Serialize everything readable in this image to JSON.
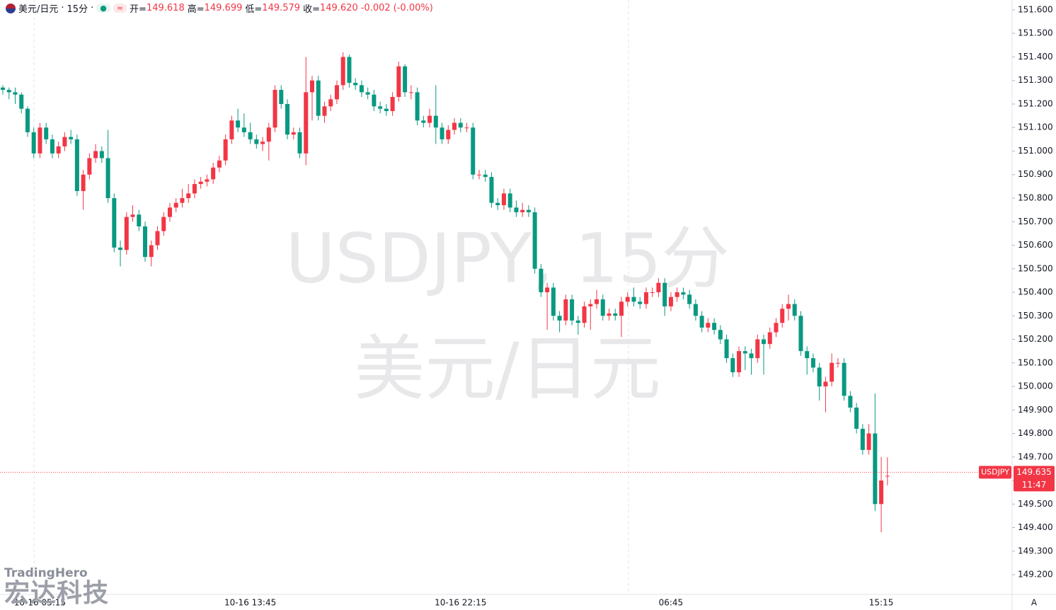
{
  "header": {
    "symbol_name": "美元/日元",
    "interval": "15分",
    "open_label": "开=",
    "open": "149.618",
    "high_label": "高=",
    "high": "149.699",
    "low_label": "低=",
    "low": "149.579",
    "close_label": "收=",
    "close": "149.620",
    "change": "-0.002",
    "change_pct": "(-0.00%)"
  },
  "logo": {
    "brand": "TradingHero",
    "company": "宏达科技"
  },
  "chart_data": {
    "type": "candlestick",
    "watermark_title": "USDJPY, 15分",
    "watermark_subtitle": "美元/日元",
    "up_color": "#f23645",
    "down_color": "#089981",
    "symbol_tag": "USDJPY",
    "last_price": 149.635,
    "last_price_label": "149.635",
    "countdown": "11:47",
    "auto_button": "A",
    "ylim": [
      149.116,
      151.642
    ],
    "yticks": [
      {
        "value": 151.6,
        "label": "151.600"
      },
      {
        "value": 151.5,
        "label": "151.500"
      },
      {
        "value": 151.4,
        "label": "151.400"
      },
      {
        "value": 151.3,
        "label": "151.300"
      },
      {
        "value": 151.2,
        "label": "151.200"
      },
      {
        "value": 151.1,
        "label": "151.100"
      },
      {
        "value": 151.0,
        "label": "151.000"
      },
      {
        "value": 150.9,
        "label": "150.900"
      },
      {
        "value": 150.8,
        "label": "150.800"
      },
      {
        "value": 150.7,
        "label": "150.700"
      },
      {
        "value": 150.6,
        "label": "150.600"
      },
      {
        "value": 150.5,
        "label": "150.500"
      },
      {
        "value": 150.4,
        "label": "150.400"
      },
      {
        "value": 150.3,
        "label": "150.300"
      },
      {
        "value": 150.2,
        "label": "150.200"
      },
      {
        "value": 150.1,
        "label": "150.100"
      },
      {
        "value": 150.0,
        "label": "150.000"
      },
      {
        "value": 149.9,
        "label": "149.900"
      },
      {
        "value": 149.8,
        "label": "149.800"
      },
      {
        "value": 149.7,
        "label": "149.700"
      },
      {
        "value": 149.6,
        "label": "149.600"
      },
      {
        "value": 149.5,
        "label": "149.500"
      },
      {
        "value": 149.4,
        "label": "149.400"
      },
      {
        "value": 149.3,
        "label": "149.300"
      },
      {
        "value": 149.2,
        "label": "149.200"
      }
    ],
    "categories": [
      null,
      null,
      null,
      null,
      null,
      null,
      "10-16 05:15",
      null,
      null,
      null,
      null,
      null,
      null,
      null,
      null,
      null,
      null,
      null,
      null,
      null,
      null,
      null,
      null,
      null,
      null,
      null,
      null,
      null,
      null,
      null,
      null,
      null,
      null,
      null,
      null,
      null,
      null,
      null,
      null,
      null,
      "10-16 13:45",
      null,
      null,
      null,
      null,
      null,
      null,
      null,
      null,
      null,
      null,
      null,
      null,
      null,
      null,
      null,
      null,
      null,
      null,
      null,
      null,
      null,
      null,
      null,
      null,
      null,
      null,
      null,
      null,
      null,
      null,
      null,
      null,
      null,
      "10-16 22:15",
      null,
      null,
      null,
      null,
      null,
      null,
      null,
      null,
      null,
      null,
      null,
      null,
      null,
      null,
      null,
      null,
      null,
      null,
      null,
      null,
      null,
      null,
      null,
      null,
      null,
      null,
      null,
      null,
      null,
      null,
      null,
      null,
      null,
      "06:45",
      null,
      null,
      null,
      null,
      null,
      null,
      null,
      null,
      null,
      null,
      null,
      null,
      null,
      null,
      null,
      null,
      null,
      null,
      null,
      null,
      null,
      null,
      null,
      null,
      null,
      null,
      null,
      null,
      null,
      null,
      null,
      null,
      null,
      "15:15",
      null
    ],
    "candles": [
      [
        151.27,
        151.28,
        151.24,
        151.26
      ],
      [
        151.26,
        151.27,
        151.22,
        151.25
      ],
      [
        151.25,
        151.27,
        151.2,
        151.24
      ],
      [
        151.24,
        151.25,
        151.16,
        151.18
      ],
      [
        151.18,
        151.19,
        151.06,
        151.08
      ],
      [
        151.08,
        151.1,
        150.97,
        150.99
      ],
      [
        150.99,
        151.12,
        150.97,
        151.1
      ],
      [
        151.1,
        151.12,
        151.03,
        151.05
      ],
      [
        151.05,
        151.07,
        150.97,
        150.99
      ],
      [
        150.99,
        151.04,
        150.97,
        151.02
      ],
      [
        151.02,
        151.08,
        151.0,
        151.06
      ],
      [
        151.06,
        151.09,
        151.03,
        151.05
      ],
      [
        151.05,
        151.07,
        150.81,
        150.83
      ],
      [
        150.83,
        150.92,
        150.75,
        150.9
      ],
      [
        150.9,
        150.99,
        150.88,
        150.97
      ],
      [
        150.97,
        151.03,
        150.95,
        151.0
      ],
      [
        151.0,
        151.02,
        150.95,
        150.97
      ],
      [
        150.97,
        151.09,
        150.78,
        150.8
      ],
      [
        150.8,
        150.82,
        150.57,
        150.59
      ],
      [
        150.59,
        150.62,
        150.51,
        150.58
      ],
      [
        150.58,
        150.74,
        150.56,
        150.72
      ],
      [
        150.72,
        150.77,
        150.7,
        150.73
      ],
      [
        150.73,
        150.75,
        150.66,
        150.68
      ],
      [
        150.68,
        150.7,
        150.53,
        150.55
      ],
      [
        150.55,
        150.62,
        150.51,
        150.6
      ],
      [
        150.6,
        150.68,
        150.58,
        150.66
      ],
      [
        150.66,
        150.74,
        150.64,
        150.72
      ],
      [
        150.72,
        150.78,
        150.7,
        150.76
      ],
      [
        150.76,
        150.8,
        150.74,
        150.78
      ],
      [
        150.78,
        150.84,
        150.76,
        150.8
      ],
      [
        150.8,
        150.86,
        150.78,
        150.82
      ],
      [
        150.82,
        150.88,
        150.8,
        150.86
      ],
      [
        150.86,
        150.89,
        150.84,
        150.87
      ],
      [
        150.87,
        150.9,
        150.85,
        150.88
      ],
      [
        150.88,
        150.95,
        150.86,
        150.93
      ],
      [
        150.93,
        150.98,
        150.91,
        150.96
      ],
      [
        150.96,
        151.07,
        150.94,
        151.05
      ],
      [
        151.05,
        151.15,
        151.03,
        151.13
      ],
      [
        151.13,
        151.18,
        151.08,
        151.1
      ],
      [
        151.1,
        151.16,
        151.06,
        151.08
      ],
      [
        151.08,
        151.12,
        151.03,
        151.05
      ],
      [
        151.05,
        151.07,
        151.01,
        151.03
      ],
      [
        151.03,
        151.06,
        151.0,
        151.04
      ],
      [
        151.04,
        151.12,
        150.96,
        151.1
      ],
      [
        151.1,
        151.28,
        151.08,
        151.26
      ],
      [
        151.26,
        151.28,
        151.18,
        151.2
      ],
      [
        151.2,
        151.22,
        151.05,
        151.07
      ],
      [
        151.07,
        151.1,
        151.05,
        151.08
      ],
      [
        151.08,
        151.1,
        150.97,
        150.99
      ],
      [
        150.99,
        151.4,
        150.94,
        151.25
      ],
      [
        151.25,
        151.32,
        151.13,
        151.3
      ],
      [
        151.3,
        151.32,
        151.13,
        151.15
      ],
      [
        151.15,
        151.21,
        151.12,
        151.19
      ],
      [
        151.19,
        151.24,
        151.17,
        151.22
      ],
      [
        151.22,
        151.3,
        151.2,
        151.28
      ],
      [
        151.28,
        151.42,
        151.26,
        151.4
      ],
      [
        151.4,
        151.41,
        151.27,
        151.29
      ],
      [
        151.29,
        151.31,
        151.26,
        151.28
      ],
      [
        151.28,
        151.3,
        151.23,
        151.25
      ],
      [
        151.25,
        151.27,
        151.22,
        151.24
      ],
      [
        151.24,
        151.26,
        151.17,
        151.19
      ],
      [
        151.19,
        151.21,
        151.16,
        151.18
      ],
      [
        151.18,
        151.2,
        151.15,
        151.17
      ],
      [
        151.17,
        151.25,
        151.15,
        151.23
      ],
      [
        151.23,
        151.38,
        151.21,
        151.36
      ],
      [
        151.36,
        151.37,
        151.23,
        151.25
      ],
      [
        151.25,
        151.28,
        151.22,
        151.25
      ],
      [
        151.25,
        151.27,
        151.11,
        151.13
      ],
      [
        151.13,
        151.15,
        151.1,
        151.12
      ],
      [
        151.12,
        151.18,
        151.1,
        151.15
      ],
      [
        151.15,
        151.28,
        151.03,
        151.1
      ],
      [
        151.1,
        151.12,
        151.03,
        151.05
      ],
      [
        151.05,
        151.11,
        151.03,
        151.09
      ],
      [
        151.09,
        151.14,
        151.07,
        151.12
      ],
      [
        151.12,
        151.14,
        151.08,
        151.1
      ],
      [
        151.1,
        151.12,
        151.08,
        151.1
      ],
      [
        151.1,
        151.12,
        150.88,
        150.9
      ],
      [
        150.9,
        150.92,
        150.88,
        150.9
      ],
      [
        150.9,
        150.92,
        150.87,
        150.89
      ],
      [
        150.89,
        150.91,
        150.76,
        150.78
      ],
      [
        150.78,
        150.8,
        150.75,
        150.77
      ],
      [
        150.77,
        150.84,
        150.75,
        150.82
      ],
      [
        150.82,
        150.84,
        150.74,
        150.76
      ],
      [
        150.76,
        150.79,
        150.72,
        150.74
      ],
      [
        150.74,
        150.78,
        150.72,
        150.75
      ],
      [
        150.75,
        150.77,
        150.72,
        150.74
      ],
      [
        150.74,
        150.76,
        150.48,
        150.5
      ],
      [
        150.5,
        150.52,
        150.38,
        150.4
      ],
      [
        150.4,
        150.44,
        150.24,
        150.42
      ],
      [
        150.42,
        150.44,
        150.28,
        150.3
      ],
      [
        150.3,
        150.32,
        150.23,
        150.28
      ],
      [
        150.28,
        150.39,
        150.26,
        150.37
      ],
      [
        150.37,
        150.39,
        150.26,
        150.28
      ],
      [
        150.28,
        150.3,
        150.22,
        150.27
      ],
      [
        150.27,
        150.36,
        150.25,
        150.34
      ],
      [
        150.34,
        150.37,
        150.24,
        150.35
      ],
      [
        150.35,
        150.41,
        150.33,
        150.37
      ],
      [
        150.37,
        150.39,
        150.28,
        150.3
      ],
      [
        150.3,
        150.33,
        150.28,
        150.31
      ],
      [
        150.31,
        150.33,
        150.28,
        150.3
      ],
      [
        150.3,
        150.38,
        150.21,
        150.36
      ],
      [
        150.36,
        150.4,
        150.34,
        150.38
      ],
      [
        150.38,
        150.42,
        150.34,
        150.36
      ],
      [
        150.36,
        150.38,
        150.33,
        150.35
      ],
      [
        150.35,
        150.42,
        150.33,
        150.4
      ],
      [
        150.4,
        150.42,
        150.38,
        150.4
      ],
      [
        150.4,
        150.46,
        150.38,
        150.44
      ],
      [
        150.44,
        150.46,
        150.3,
        150.34
      ],
      [
        150.34,
        150.4,
        150.32,
        150.38
      ],
      [
        150.38,
        150.42,
        150.36,
        150.4
      ],
      [
        150.4,
        150.42,
        150.37,
        150.39
      ],
      [
        150.39,
        150.41,
        150.33,
        150.35
      ],
      [
        150.35,
        150.37,
        150.28,
        150.3
      ],
      [
        150.3,
        150.32,
        150.23,
        150.25
      ],
      [
        150.25,
        150.29,
        150.23,
        150.27
      ],
      [
        150.27,
        150.29,
        150.22,
        150.24
      ],
      [
        150.24,
        150.26,
        150.18,
        150.2
      ],
      [
        150.2,
        150.22,
        150.1,
        150.12
      ],
      [
        150.12,
        150.14,
        150.04,
        150.06
      ],
      [
        150.06,
        150.17,
        150.04,
        150.15
      ],
      [
        150.15,
        150.17,
        150.07,
        150.14
      ],
      [
        150.14,
        150.16,
        150.05,
        150.12
      ],
      [
        150.12,
        150.22,
        150.1,
        150.2
      ],
      [
        150.2,
        150.22,
        150.05,
        150.18
      ],
      [
        150.18,
        150.25,
        150.16,
        150.23
      ],
      [
        150.23,
        150.29,
        150.21,
        150.27
      ],
      [
        150.27,
        150.35,
        150.25,
        150.33
      ],
      [
        150.33,
        150.39,
        150.28,
        150.35
      ],
      [
        150.35,
        150.37,
        150.28,
        150.3
      ],
      [
        150.3,
        150.32,
        150.13,
        150.15
      ],
      [
        150.15,
        150.17,
        150.05,
        150.12
      ],
      [
        150.12,
        150.14,
        150.06,
        150.08
      ],
      [
        150.08,
        150.1,
        149.94,
        150.0
      ],
      [
        150.0,
        150.04,
        149.89,
        150.02
      ],
      [
        150.02,
        150.14,
        150.0,
        150.1
      ],
      [
        150.1,
        150.12,
        150.08,
        150.1
      ],
      [
        150.1,
        150.12,
        149.94,
        149.96
      ],
      [
        149.96,
        149.98,
        149.89,
        149.91
      ],
      [
        149.91,
        149.93,
        149.8,
        149.82
      ],
      [
        149.82,
        149.84,
        149.71,
        149.73
      ],
      [
        149.73,
        149.84,
        149.71,
        149.8
      ],
      [
        149.8,
        149.97,
        149.47,
        149.5
      ],
      [
        149.5,
        149.7,
        149.38,
        149.6
      ],
      [
        149.618,
        149.699,
        149.579,
        149.62
      ]
    ]
  }
}
